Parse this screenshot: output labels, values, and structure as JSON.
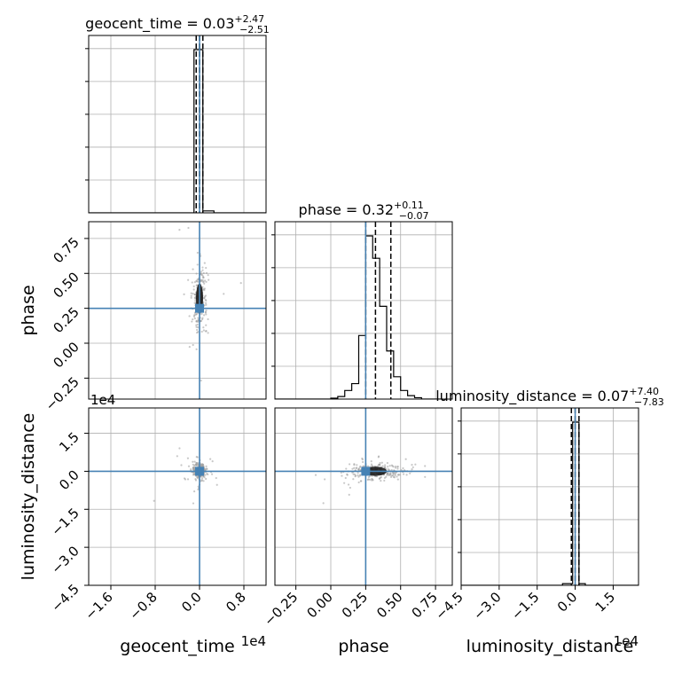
{
  "chart_data": {
    "type": "corner",
    "parameters": [
      {
        "name": "geocent_time",
        "label": "geocent_time",
        "multiplier_label": "1e4",
        "title": {
          "prefix": "geocent_time = ",
          "value": "0.03",
          "plus": "+2.47",
          "minus": "−2.51"
        },
        "range": [
          -2.0,
          1.2
        ],
        "ticks": [
          -1.6,
          -0.8,
          0.0,
          0.8
        ],
        "tick_labels": [
          "−1.6",
          "−0.8",
          "0.0",
          "0.8"
        ],
        "quantiles": [
          -0.06,
          0.0,
          0.06
        ],
        "truth": 0.0
      },
      {
        "name": "phase",
        "label": "phase",
        "title": {
          "prefix": "phase = ",
          "value": "0.32",
          "plus": "+0.11",
          "minus": "−0.07"
        },
        "range": [
          -0.4,
          0.87
        ],
        "ticks": [
          -0.25,
          0.0,
          0.25,
          0.5,
          0.75
        ],
        "tick_labels": [
          "−0.25",
          "0.00",
          "0.25",
          "0.50",
          "0.75"
        ],
        "quantiles": [
          0.25,
          0.32,
          0.43
        ],
        "truth": 0.25
      },
      {
        "name": "luminosity_distance",
        "label": "luminosity_distance",
        "multiplier_label": "1e4",
        "title": {
          "prefix": "luminosity_distance = ",
          "value": "0.07",
          "plus": "+7.40",
          "minus": "−7.83"
        },
        "range": [
          -4.5,
          2.5
        ],
        "ticks": [
          -4.5,
          -3.0,
          -1.5,
          0.0,
          1.5
        ],
        "tick_labels": [
          "−4.5",
          "−3.0",
          "−1.5",
          "0.0",
          "1.5"
        ],
        "quantiles": [
          -0.15,
          0.0,
          0.15
        ],
        "truth": 0.0
      }
    ],
    "histograms": {
      "geocent_time": {
        "edges": [
          -2.0,
          -1.8,
          -1.6,
          -1.4,
          -1.2,
          -1.0,
          -0.8,
          -0.6,
          -0.4,
          -0.2,
          -0.1,
          0.06,
          0.26,
          0.46,
          0.66,
          0.86,
          1.06,
          1.2
        ],
        "counts": [
          0,
          0,
          0,
          0,
          0,
          0,
          0,
          0,
          0,
          0,
          1.0,
          0.012,
          0,
          0,
          0,
          0,
          0
        ]
      },
      "phase": {
        "edges": [
          -0.4,
          -0.35,
          -0.3,
          -0.25,
          -0.2,
          -0.15,
          -0.1,
          -0.05,
          0.0,
          0.05,
          0.1,
          0.15,
          0.2,
          0.25,
          0.3,
          0.35,
          0.4,
          0.45,
          0.5,
          0.55,
          0.6,
          0.65,
          0.7,
          0.75,
          0.8
        ],
        "counts": [
          0,
          0,
          0,
          0,
          0,
          0,
          0,
          0,
          0.005,
          0.015,
          0.05,
          0.09,
          0.37,
          0.95,
          0.82,
          0.54,
          0.28,
          0.13,
          0.05,
          0.02,
          0.008,
          0,
          0,
          0
        ]
      },
      "luminosity_distance": {
        "edges": [
          -4.5,
          -4.0,
          -3.5,
          -3.0,
          -2.5,
          -2.0,
          -1.5,
          -1.0,
          -0.5,
          -0.1,
          0.15,
          0.4,
          0.9,
          1.4,
          1.9,
          2.5
        ],
        "counts": [
          0,
          0,
          0,
          0,
          0,
          0,
          0,
          0,
          0.01,
          1.0,
          0.01,
          0,
          0,
          0,
          0
        ]
      }
    },
    "truth_color": "#4682b4",
    "grid": true
  }
}
